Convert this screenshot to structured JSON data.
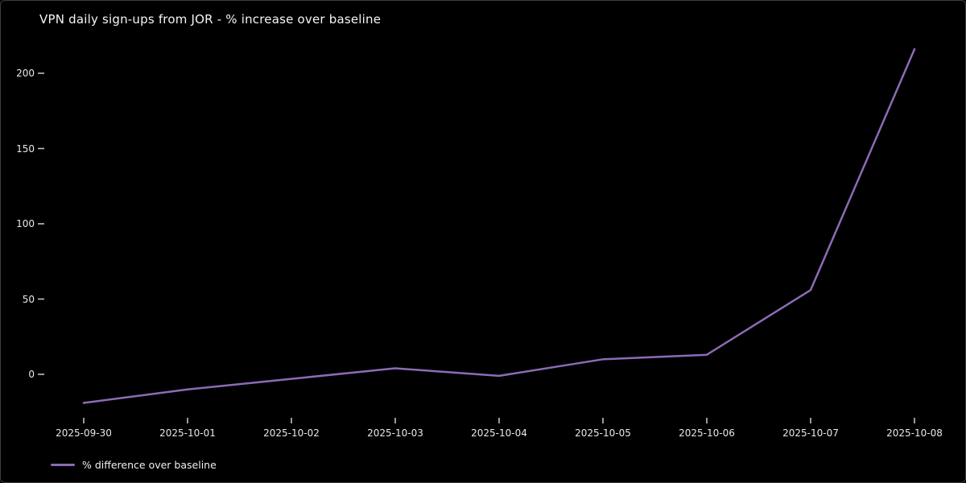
{
  "chart_data": {
    "type": "line",
    "title": "VPN daily sign-ups from JOR - % increase over baseline",
    "x": [
      "2025-09-30",
      "2025-10-01",
      "2025-10-02",
      "2025-10-03",
      "2025-10-04",
      "2025-10-05",
      "2025-10-06",
      "2025-10-07",
      "2025-10-08"
    ],
    "series": [
      {
        "name": "% difference over baseline",
        "values": [
          -19,
          -10,
          -3,
          4,
          -1,
          10,
          13,
          56,
          216
        ],
        "color": "#8c6bb5"
      }
    ],
    "xlabel": "",
    "ylabel": "",
    "yticks": [
      0,
      50,
      100,
      150,
      200
    ],
    "ylim": [
      -35,
      222
    ],
    "grid": false,
    "legend_position": "lower left",
    "background_color": "#000000",
    "text_color": "#f5f5f5",
    "tick_color": "#cccccc"
  }
}
